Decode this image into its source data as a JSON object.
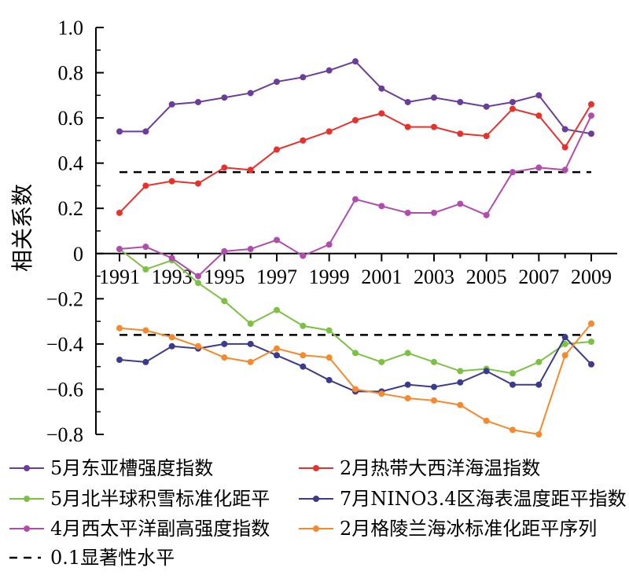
{
  "chart_data": {
    "type": "line",
    "xlabel": "",
    "ylabel": "相关系数",
    "ylim": [
      -0.8,
      1.0
    ],
    "y_ticks": [
      "1.0",
      "0.8",
      "0.6",
      "0.4",
      "0.2",
      "0",
      "−0.2",
      "−0.4",
      "−0.6",
      "−0.8"
    ],
    "y_tick_values": [
      1.0,
      0.8,
      0.6,
      0.4,
      0.2,
      0,
      -0.2,
      -0.4,
      -0.6,
      -0.8
    ],
    "x": [
      1991,
      1992,
      1993,
      1994,
      1995,
      1996,
      1997,
      1998,
      1999,
      2000,
      2001,
      2002,
      2003,
      2004,
      2005,
      2006,
      2007,
      2008,
      2009
    ],
    "x_tick_labels": [
      "1991",
      "1993",
      "1995",
      "1997",
      "1999",
      "2001",
      "2003",
      "2005",
      "2007",
      "2009"
    ],
    "x_tick_values": [
      1991,
      1993,
      1995,
      1997,
      1999,
      2001,
      2003,
      2005,
      2007,
      2009
    ],
    "grid": false,
    "series": [
      {
        "name": "5月东亚槽强度指数",
        "color": "#6a3d9a",
        "values": [
          0.54,
          0.54,
          0.66,
          0.67,
          0.69,
          0.71,
          0.76,
          0.78,
          0.81,
          0.85,
          0.73,
          0.67,
          0.69,
          0.67,
          0.65,
          0.67,
          0.7,
          0.55,
          0.53
        ]
      },
      {
        "name": "2月热带大西洋海温指数",
        "color": "#e8312a",
        "values": [
          0.18,
          0.3,
          0.32,
          0.31,
          0.38,
          0.37,
          0.46,
          0.5,
          0.54,
          0.59,
          0.62,
          0.56,
          0.56,
          0.53,
          0.52,
          0.64,
          0.61,
          0.47,
          0.66
        ]
      },
      {
        "name": "5月北半球积雪标准化距平",
        "color": "#7cc242",
        "values": [
          0.02,
          -0.07,
          -0.03,
          -0.13,
          -0.21,
          -0.31,
          -0.25,
          -0.32,
          -0.34,
          -0.44,
          -0.48,
          -0.44,
          -0.48,
          -0.52,
          -0.51,
          -0.53,
          -0.48,
          -0.4,
          -0.39
        ]
      },
      {
        "name": "7月NINO3.4区海表温度距平指数",
        "color": "#3b3a8c",
        "values": [
          -0.47,
          -0.48,
          -0.41,
          -0.42,
          -0.4,
          -0.4,
          -0.45,
          -0.5,
          -0.56,
          -0.61,
          -0.61,
          -0.58,
          -0.59,
          -0.57,
          -0.52,
          -0.58,
          -0.58,
          -0.37,
          -0.49
        ]
      },
      {
        "name": "4月西太平洋副高强度指数",
        "color": "#b04cad",
        "values": [
          0.02,
          0.03,
          -0.02,
          -0.1,
          0.01,
          0.02,
          0.06,
          -0.01,
          0.04,
          0.24,
          0.21,
          0.18,
          0.18,
          0.22,
          0.17,
          0.36,
          0.38,
          0.37,
          0.61
        ]
      },
      {
        "name": "2月格陵兰海冰标准化距平序列",
        "color": "#f5892b",
        "values": [
          -0.33,
          -0.34,
          -0.37,
          -0.41,
          -0.46,
          -0.48,
          -0.42,
          -0.45,
          -0.46,
          -0.6,
          -0.62,
          -0.64,
          -0.65,
          -0.67,
          -0.74,
          -0.78,
          -0.8,
          -0.45,
          -0.31
        ]
      }
    ],
    "reference_lines": [
      {
        "name": "0.1显著性水平",
        "y": 0.36,
        "style": "dashed",
        "color": "#000000"
      },
      {
        "name": "",
        "y": -0.36,
        "style": "dashed",
        "color": "#000000"
      }
    ],
    "legend": {
      "placement": "bottom",
      "columns": 2,
      "entries": [
        "5月东亚槽强度指数",
        "2月热带大西洋海温指数",
        "5月北半球积雪标准化距平",
        "7月NINO3.4区海表温度距平指数",
        "4月西太平洋副高强度指数",
        "2月格陵兰海冰标准化距平序列",
        "0.1显著性水平"
      ]
    }
  }
}
